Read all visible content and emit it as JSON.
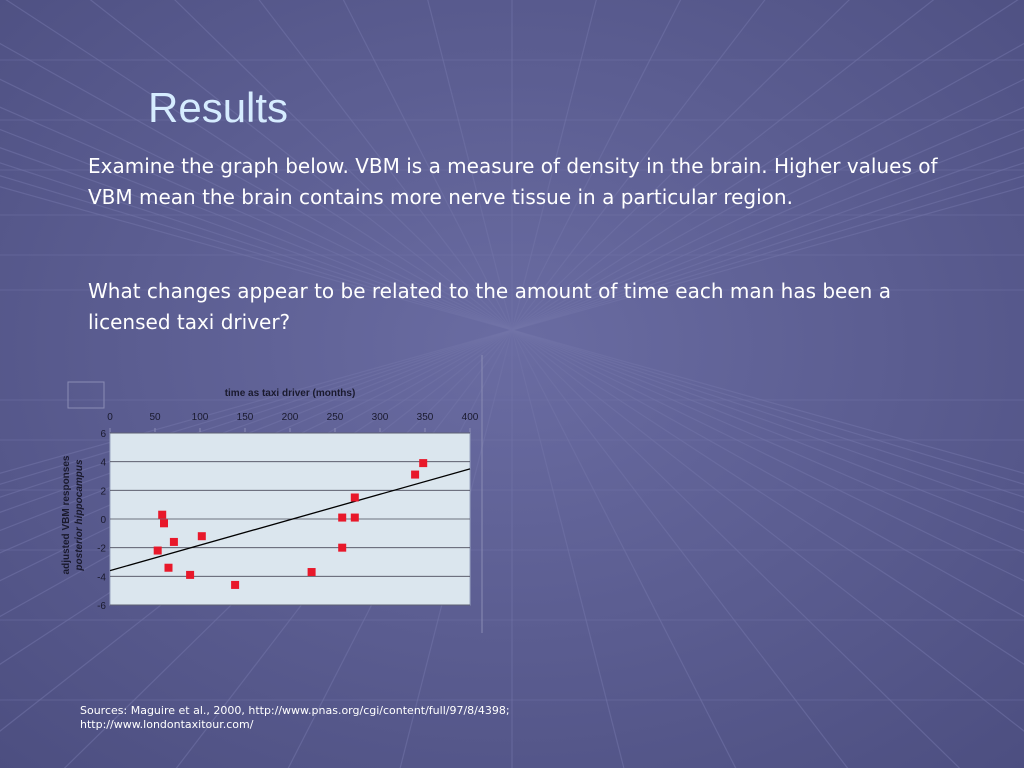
{
  "slide": {
    "title": "Results",
    "paragraphs": [
      "Examine the graph below.  VBM is a measure of density in the brain. Higher values of VBM mean the brain contains more nerve tissue in a particular region.",
      "What changes appear to be related to the amount of time each man has been a licensed taxi driver?"
    ],
    "sources": [
      "Sources: Maguire et al., 2000, http://www.pnas.org/cgi/content/full/97/8/4398;",
      "http://www.londontaxitour.com/"
    ]
  },
  "colors": {
    "background": "#5a5c90",
    "title": "#d6ecff",
    "text": "#ffffff",
    "plot_background": "#dbe6ee",
    "marker": "#e8182a",
    "trend_line": "#000000"
  },
  "chart_data": {
    "type": "scatter",
    "title": "time as taxi driver (months)",
    "xlabel": "",
    "ylabel": "adjusted VBM responses posterior hippocampus",
    "ylabel_lines": [
      "adjusted VBM responses",
      "posterior hippocampus"
    ],
    "xlim": [
      0,
      400
    ],
    "ylim": [
      -6,
      6
    ],
    "x_ticks": [
      0,
      50,
      100,
      150,
      200,
      250,
      300,
      350,
      400
    ],
    "y_ticks": [
      -6,
      -4,
      -2,
      0,
      2,
      4,
      6
    ],
    "x_axis_position": "top",
    "grid": "horizontal",
    "points": [
      {
        "x": 53,
        "y": -2.2
      },
      {
        "x": 58,
        "y": 0.3
      },
      {
        "x": 60,
        "y": -0.3
      },
      {
        "x": 65,
        "y": -3.4
      },
      {
        "x": 71,
        "y": -1.6
      },
      {
        "x": 89,
        "y": -3.9
      },
      {
        "x": 102,
        "y": -1.2
      },
      {
        "x": 139,
        "y": -4.6
      },
      {
        "x": 224,
        "y": -3.7
      },
      {
        "x": 258,
        "y": -2.0
      },
      {
        "x": 258,
        "y": 0.1
      },
      {
        "x": 272,
        "y": 0.1
      },
      {
        "x": 272,
        "y": 1.5
      },
      {
        "x": 339,
        "y": 3.1
      },
      {
        "x": 348,
        "y": 3.9
      }
    ],
    "trend_line": {
      "x": [
        0,
        400
      ],
      "y": [
        -3.6,
        3.5
      ]
    }
  }
}
